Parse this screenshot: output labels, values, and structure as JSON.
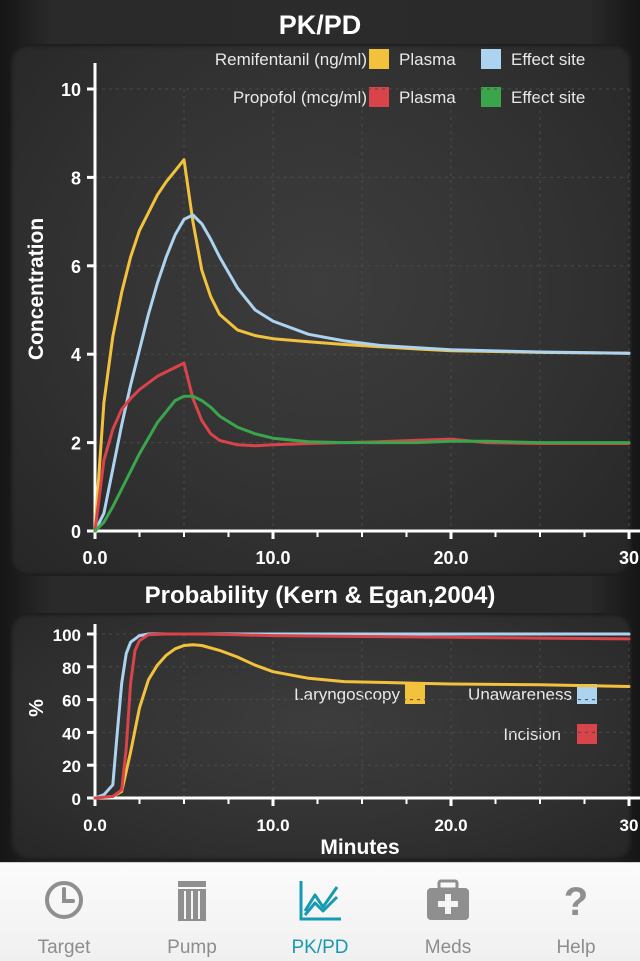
{
  "pk": {
    "title": "PK/PD",
    "ylabel": "Concentration",
    "legend": {
      "remi_label": "Remifentanil (ng/ml)",
      "propofol_label": "Propofol (mcg/ml)",
      "plasma": "Plasma",
      "effect": "Effect site"
    }
  },
  "prob": {
    "title": "Probability (Kern & Egan,2004)",
    "ylabel": "%",
    "xlabel": "Minutes",
    "legend": {
      "laryngoscopy": "Laryngoscopy",
      "unawareness": "Unawareness",
      "incision": "Incision"
    }
  },
  "colors": {
    "remi_plasma": "#f2c23d",
    "remi_effect": "#acd3f0",
    "prop_plasma": "#d9434a",
    "prop_effect": "#3aa54a",
    "laryngoscopy": "#f2c23d",
    "unawareness": "#acd3f0",
    "incision": "#d9434a",
    "active_tab": "#169ab3"
  },
  "chart_data": [
    {
      "type": "line",
      "title": "PK/PD",
      "ylabel": "Concentration",
      "xlim": [
        0,
        30
      ],
      "ylim": [
        0,
        10
      ],
      "yticks": [
        0,
        2,
        4,
        6,
        8,
        10
      ],
      "xticks": [
        0,
        10,
        20,
        30
      ],
      "xtick_labels": [
        "0.0",
        "10.0",
        "20.0",
        "30"
      ],
      "series": [
        {
          "name": "Remifentanil (ng/ml) Plasma",
          "color_key": "remi_plasma",
          "x": [
            0,
            0.5,
            1,
            1.5,
            2,
            2.5,
            3,
            3.5,
            4,
            4.5,
            5,
            5.5,
            6,
            6.5,
            7,
            8,
            9,
            10,
            12,
            14,
            16,
            18,
            20,
            25,
            30
          ],
          "y": [
            0,
            2.9,
            4.4,
            5.4,
            6.2,
            6.8,
            7.2,
            7.6,
            7.9,
            8.15,
            8.4,
            7.0,
            5.9,
            5.3,
            4.9,
            4.55,
            4.42,
            4.35,
            4.28,
            4.22,
            4.17,
            4.12,
            4.08,
            4.04,
            4.02
          ]
        },
        {
          "name": "Remifentanil (ng/ml) Effect site",
          "color_key": "remi_effect",
          "x": [
            0,
            0.5,
            1,
            1.5,
            2,
            2.5,
            3,
            3.5,
            4,
            4.5,
            5,
            5.5,
            6,
            6.5,
            7,
            8,
            9,
            10,
            12,
            14,
            16,
            18,
            20,
            25,
            30
          ],
          "y": [
            0,
            0.4,
            1.4,
            2.4,
            3.3,
            4.1,
            4.9,
            5.6,
            6.2,
            6.7,
            7.05,
            7.15,
            6.95,
            6.6,
            6.2,
            5.5,
            5.0,
            4.75,
            4.45,
            4.3,
            4.2,
            4.15,
            4.1,
            4.05,
            4.02
          ]
        },
        {
          "name": "Propofol (mcg/ml) Plasma",
          "color_key": "prop_plasma",
          "x": [
            0,
            0.5,
            1,
            1.5,
            2,
            2.5,
            3,
            3.5,
            4,
            4.5,
            5,
            5.5,
            6,
            6.5,
            7,
            8,
            9,
            10,
            12,
            14,
            16,
            18,
            20,
            22,
            25,
            30
          ],
          "y": [
            0,
            1.6,
            2.3,
            2.75,
            3.0,
            3.2,
            3.35,
            3.5,
            3.6,
            3.7,
            3.8,
            3.0,
            2.5,
            2.2,
            2.05,
            1.95,
            1.93,
            1.95,
            1.98,
            2.0,
            2.02,
            2.05,
            2.08,
            2.0,
            1.98,
            1.98
          ]
        },
        {
          "name": "Propofol (mcg/ml) Effect site",
          "color_key": "prop_effect",
          "x": [
            0,
            0.5,
            1,
            1.5,
            2,
            2.5,
            3,
            3.5,
            4,
            4.5,
            5,
            5.5,
            6,
            6.5,
            7,
            8,
            9,
            10,
            12,
            14,
            16,
            18,
            20,
            22,
            25,
            30
          ],
          "y": [
            0,
            0.2,
            0.55,
            0.95,
            1.35,
            1.75,
            2.1,
            2.45,
            2.7,
            2.95,
            3.05,
            3.05,
            2.95,
            2.8,
            2.6,
            2.35,
            2.2,
            2.1,
            2.02,
            2.0,
            2.0,
            2.0,
            2.03,
            2.03,
            2.0,
            2.0
          ]
        }
      ]
    },
    {
      "type": "line",
      "title": "Probability (Kern & Egan,2004)",
      "xlabel": "Minutes",
      "ylabel": "%",
      "xlim": [
        0,
        30
      ],
      "ylim": [
        0,
        100
      ],
      "yticks": [
        0,
        20,
        40,
        60,
        80,
        100
      ],
      "xticks": [
        0,
        10,
        20,
        30
      ],
      "xtick_labels": [
        "0.0",
        "10.0",
        "20.0",
        "30"
      ],
      "series": [
        {
          "name": "Laryngoscopy",
          "color_key": "laryngoscopy",
          "x": [
            0,
            1,
            1.5,
            2,
            2.5,
            3,
            3.5,
            4,
            4.5,
            5,
            5.5,
            6,
            7,
            8,
            9,
            10,
            12,
            14,
            16,
            18,
            20,
            25,
            30
          ],
          "y": [
            0,
            1,
            4,
            28,
            55,
            72,
            81,
            87,
            91,
            93,
            93.5,
            93,
            90,
            86,
            81,
            77,
            73,
            71,
            70.5,
            70,
            69.5,
            69,
            68
          ]
        },
        {
          "name": "Unawareness",
          "color_key": "unawareness",
          "x": [
            0,
            0.5,
            1,
            1.25,
            1.5,
            1.75,
            2,
            2.5,
            3,
            4,
            6,
            10,
            20,
            30
          ],
          "y": [
            0,
            2,
            8,
            40,
            70,
            88,
            95,
            99,
            100,
            100,
            100,
            100,
            100,
            100
          ]
        },
        {
          "name": "Incision",
          "color_key": "incision",
          "x": [
            0,
            1,
            1.5,
            1.75,
            2,
            2.25,
            2.5,
            3,
            4,
            6,
            8,
            10,
            15,
            20,
            25,
            30
          ],
          "y": [
            0,
            1,
            5,
            30,
            70,
            90,
            96,
            99.5,
            100,
            100,
            99.5,
            99,
            98.5,
            98,
            97.5,
            97
          ]
        }
      ]
    }
  ],
  "tabs": [
    {
      "label": "Target",
      "icon": "clock-icon"
    },
    {
      "label": "Pump",
      "icon": "pump-icon"
    },
    {
      "label": "PK/PD",
      "icon": "line-chart-icon"
    },
    {
      "label": "Meds",
      "icon": "medical-kit-icon"
    },
    {
      "label": "Help",
      "icon": "question-mark-icon"
    }
  ]
}
